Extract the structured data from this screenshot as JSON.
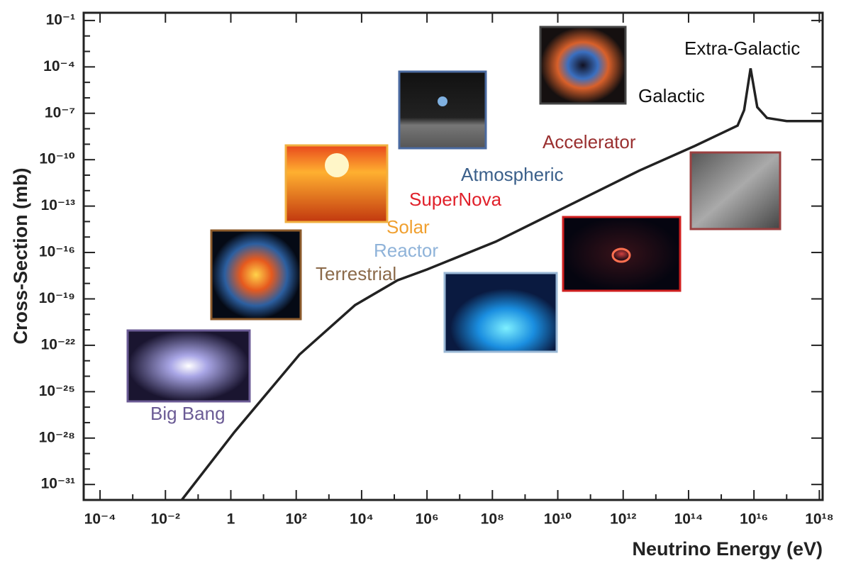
{
  "chart_data": {
    "type": "line",
    "x_label": "Neutrino Energy (eV)",
    "y_label": "Cross-Section (mb)",
    "log_x": true,
    "log_y": true,
    "xlim": [
      3.16e-05,
      1.26e+18
    ],
    "ylim": [
      1e-32,
      0.316
    ],
    "xticks": [
      {
        "value": 0.0001,
        "label": "10⁻⁴"
      },
      {
        "value": 0.01,
        "label": "10⁻²"
      },
      1,
      {
        "value": 100.0,
        "label": "10²"
      },
      {
        "value": 10000.0,
        "label": "10⁴"
      },
      {
        "value": 1000000.0,
        "label": "10⁶"
      },
      {
        "value": 100000000.0,
        "label": "10⁸"
      },
      {
        "value": 10000000000.0,
        "label": "10¹⁰"
      },
      {
        "value": 1000000000000.0,
        "label": "10¹²"
      },
      {
        "value": 100000000000000.0,
        "label": "10¹⁴"
      },
      {
        "value": 1e+16,
        "label": "10¹⁶"
      },
      {
        "value": 1e+18,
        "label": "10¹⁸"
      }
    ],
    "yticks": [
      {
        "value": 1e-31,
        "label": "10⁻³¹"
      },
      {
        "value": 1e-28,
        "label": "10⁻²⁸"
      },
      {
        "value": 1e-25,
        "label": "10⁻²⁵"
      },
      {
        "value": 1e-22,
        "label": "10⁻²²"
      },
      {
        "value": 1e-19,
        "label": "10⁻¹⁹"
      },
      {
        "value": 1e-16,
        "label": "10⁻¹⁶"
      },
      {
        "value": 1e-13,
        "label": "10⁻¹³"
      },
      {
        "value": 1e-10,
        "label": "10⁻¹⁰"
      },
      {
        "value": 1e-07,
        "label": "10⁻⁷"
      },
      {
        "value": 0.0001,
        "label": "10⁻⁴"
      },
      {
        "value": 0.1,
        "label": "10⁻¹"
      }
    ],
    "x": [
      0.0316,
      1.3,
      126,
      6300,
      126000,
      1000000.0,
      126000000.0,
      20000000000.0,
      3160000000000.0,
      160000000000000.0,
      3160000000000000.0,
      5000000000000000.0,
      7900000000000000.0,
      1.26e+16,
      2.5e+16,
      1e+17,
      1.26e+18
    ],
    "values": [
      1e-32,
      2.5e-28,
      2.5e-23,
      4e-20,
      1.6e-18,
      8e-18,
      5e-16,
      1e-13,
      2e-11,
      8e-10,
      1.6e-08,
      1.6e-07,
      8e-05,
      2.5e-07,
      5e-08,
      3.16e-08,
      3.16e-08
    ],
    "color": "#222222",
    "annotations": [
      {
        "text": "Big Bang",
        "color": "#6b5b95"
      },
      {
        "text": "Terrestrial",
        "color": "#8b6a4a"
      },
      {
        "text": "Reactor",
        "color": "#8fb3d9"
      },
      {
        "text": "Solar",
        "color": "#f0a030"
      },
      {
        "text": "SuperNova",
        "color": "#e0202a"
      },
      {
        "text": "Atmospheric",
        "color": "#3a5f8a"
      },
      {
        "text": "Accelerator",
        "color": "#9a3030"
      },
      {
        "text": "Galactic",
        "color": "#111111"
      },
      {
        "text": "Extra-Galactic",
        "color": "#111111"
      }
    ]
  }
}
